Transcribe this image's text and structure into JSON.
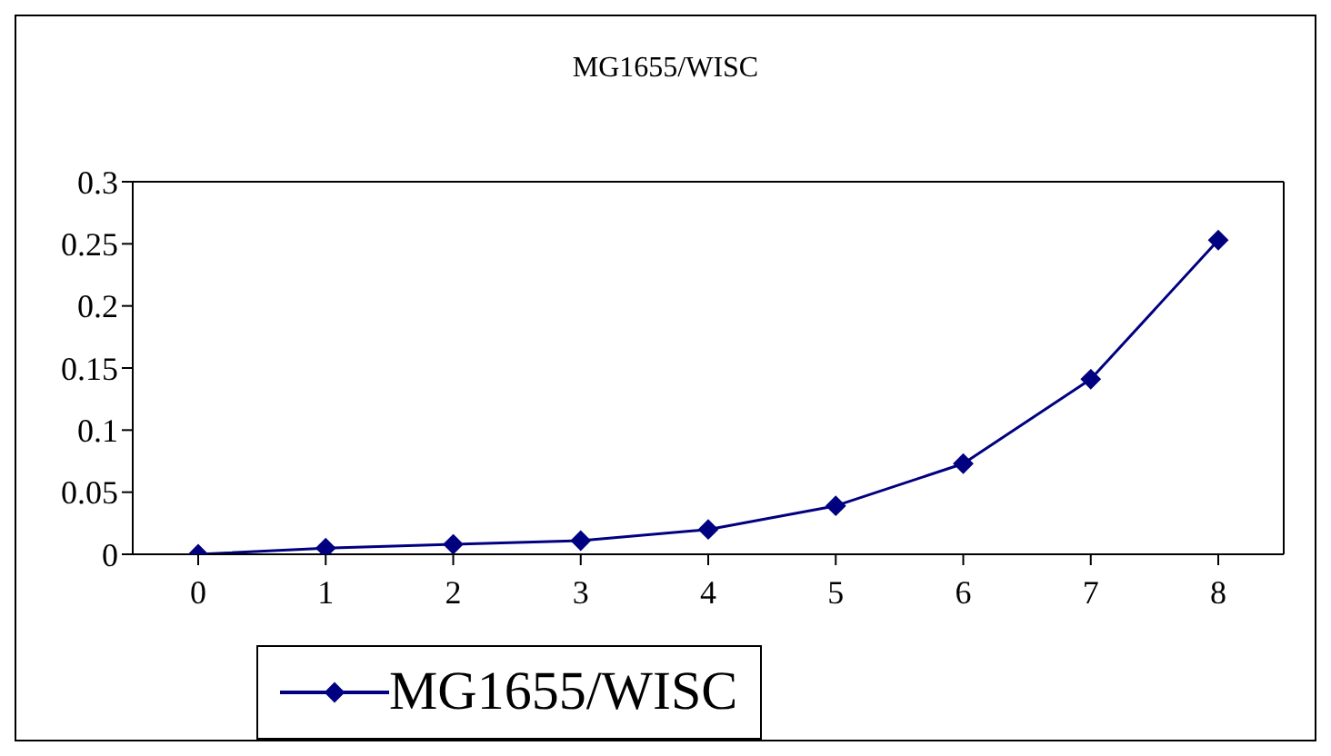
{
  "chart_data": {
    "type": "line",
    "title": "MG1655/WISC",
    "categories": [
      "0",
      "1",
      "2",
      "3",
      "4",
      "5",
      "6",
      "7",
      "8"
    ],
    "series": [
      {
        "name": "MG1655/WISC",
        "color": "#000080",
        "values": [
          0,
          0.005,
          0.008,
          0.011,
          0.02,
          0.039,
          0.073,
          0.141,
          0.253
        ]
      }
    ],
    "ylim": [
      0,
      0.3
    ],
    "yticks": [
      0,
      0.05,
      0.1,
      0.15,
      0.2,
      0.25,
      0.3
    ],
    "grid": false,
    "legend": "bottom left",
    "marker": "diamond",
    "line_style": "solid"
  }
}
